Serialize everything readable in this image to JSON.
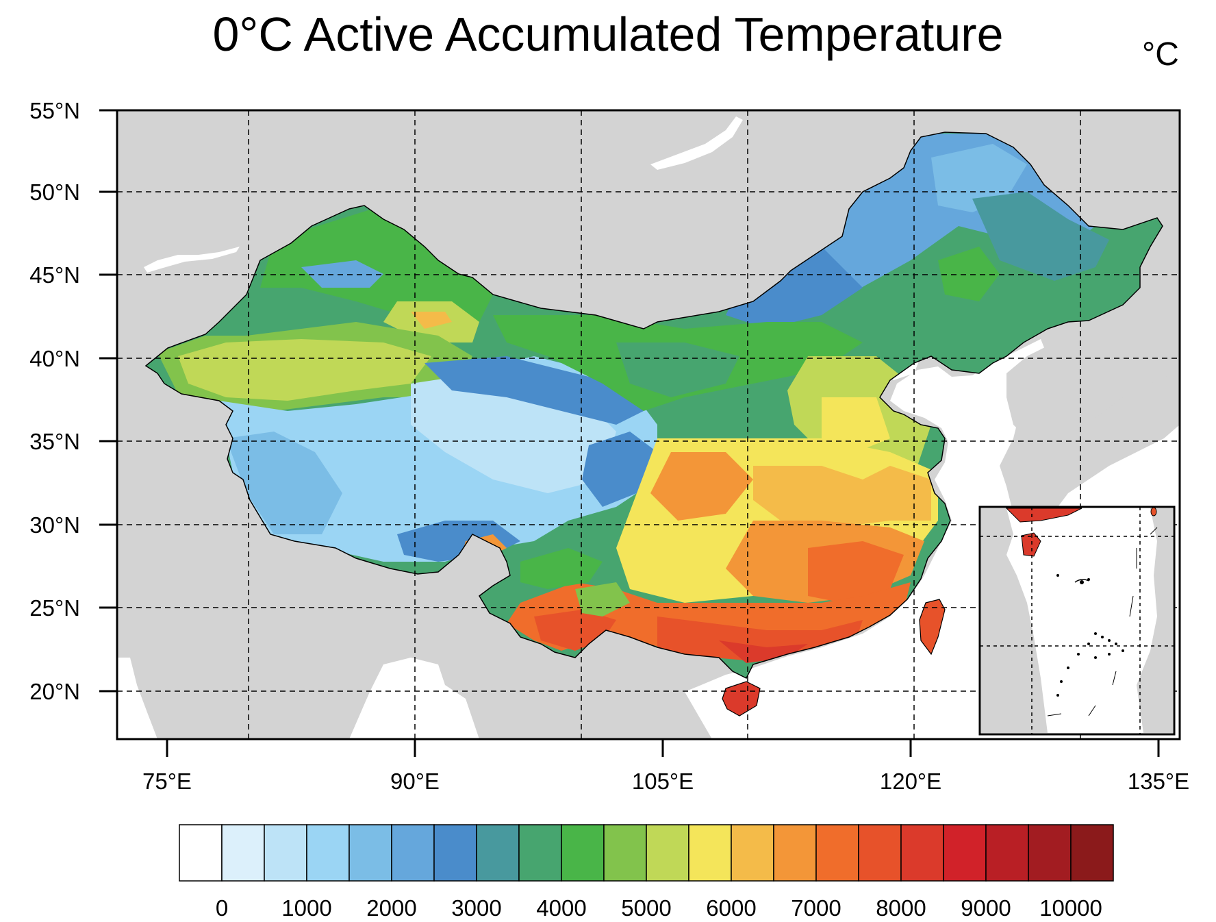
{
  "title": "0°C Active Accumulated Temperature",
  "unit": "°C",
  "lat_labels": [
    "55°N",
    "50°N",
    "45°N",
    "40°N",
    "35°N",
    "30°N",
    "25°N",
    "20°N"
  ],
  "lon_labels": [
    "75°E",
    "90°E",
    "105°E",
    "120°E",
    "135°E"
  ],
  "colorbar": {
    "labels": [
      "0",
      "1000",
      "2000",
      "3000",
      "4000",
      "5000",
      "6000",
      "7000",
      "8000",
      "9000",
      "10000"
    ],
    "colors": [
      "#ffffff",
      "#dcf0fb",
      "#bde3f7",
      "#9bd5f4",
      "#7bbde6",
      "#65a7dc",
      "#4a8ccb",
      "#48999e",
      "#47a56f",
      "#49b548",
      "#82c34c",
      "#c0d857",
      "#f4e55a",
      "#f4bb49",
      "#f39638",
      "#f06d2b",
      "#e7522a",
      "#db3a2b",
      "#d12229",
      "#b91f25",
      "#a21c21",
      "#8b1a1b"
    ]
  },
  "colors": {
    "land_outside": "#d3d3d3",
    "water": "#ffffff"
  }
}
